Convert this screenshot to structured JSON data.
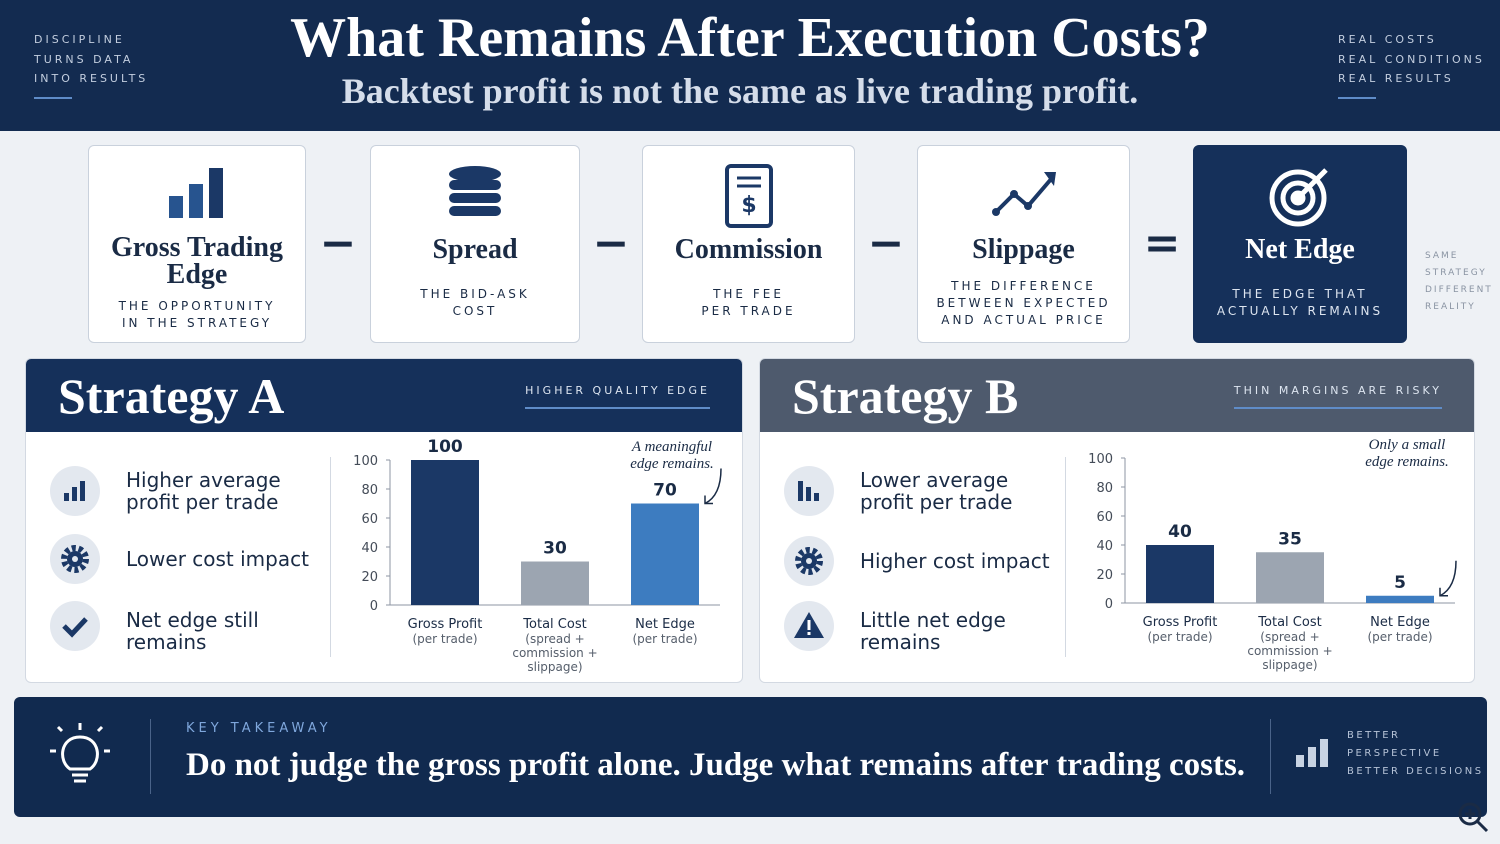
{
  "header": {
    "left_tagline": [
      "DISCIPLINE",
      "TURNS DATA",
      "INTO RESULTS"
    ],
    "title": "What Remains After Execution Costs?",
    "subtitle": "Backtest profit is not the same as live trading profit.",
    "right_tagline": [
      "REAL COSTS",
      "REAL CONDITIONS",
      "REAL RESULTS"
    ]
  },
  "formula": {
    "items": [
      {
        "title": "Gross Trading Edge",
        "desc": "THE OPPORTUNITY IN THE STRATEGY"
      },
      {
        "title": "Spread",
        "desc": "THE BID-ASK COST"
      },
      {
        "title": "Commission",
        "desc": "THE FEE PER TRADE"
      },
      {
        "title": "Slippage",
        "desc": "THE DIFFERENCE BETWEEN EXPECTED AND ACTUAL PRICE"
      },
      {
        "title": "Net Edge",
        "desc": "THE EDGE THAT ACTUALLY REMAINS"
      }
    ],
    "operators": [
      "−",
      "−",
      "−",
      "="
    ],
    "side_note": [
      "SAME",
      "STRATEGY",
      "DIFFERENT",
      "REALITY"
    ]
  },
  "strategies": [
    {
      "title": "Strategy A",
      "tag": "HIGHER QUALITY EDGE",
      "points": [
        "Higher average profit per trade",
        "Lower cost impact",
        "Net edge still remains"
      ]
    },
    {
      "title": "Strategy B",
      "tag": "THIN MARGINS ARE RISKY",
      "points": [
        "Lower average profit per trade",
        "Higher cost impact",
        "Little net edge remains"
      ]
    }
  ],
  "chart_data": [
    {
      "type": "bar",
      "categories": [
        "Gross Profit",
        "Total Cost",
        "Net Edge"
      ],
      "category_notes": [
        "(per trade)",
        "(spread + commission + slippage)",
        "(per trade)"
      ],
      "values": [
        100,
        30,
        70
      ],
      "colors": [
        "#1b3866",
        "#9ca5b1",
        "#3d7cc0"
      ],
      "annotation": "A meaningful edge remains.",
      "ylim": [
        0,
        100
      ],
      "yticks": [
        0,
        20,
        40,
        60,
        80,
        100
      ]
    },
    {
      "type": "bar",
      "categories": [
        "Gross Profit",
        "Total Cost",
        "Net Edge"
      ],
      "category_notes": [
        "(per trade)",
        "(spread + commission + slippage)",
        "(per trade)"
      ],
      "values": [
        40,
        35,
        5
      ],
      "colors": [
        "#1b3866",
        "#9ca5b1",
        "#3d7cc0"
      ],
      "annotation": "Only a small edge remains.",
      "ylim": [
        0,
        100
      ],
      "yticks": [
        0,
        20,
        40,
        60,
        80,
        100
      ]
    }
  ],
  "takeaway": {
    "label": "KEY TAKEAWAY",
    "text": "Do not judge the gross profit alone. Judge what remains after trading costs.",
    "side": [
      "BETTER",
      "PERSPECTIVE",
      "BETTER DECISIONS"
    ]
  }
}
